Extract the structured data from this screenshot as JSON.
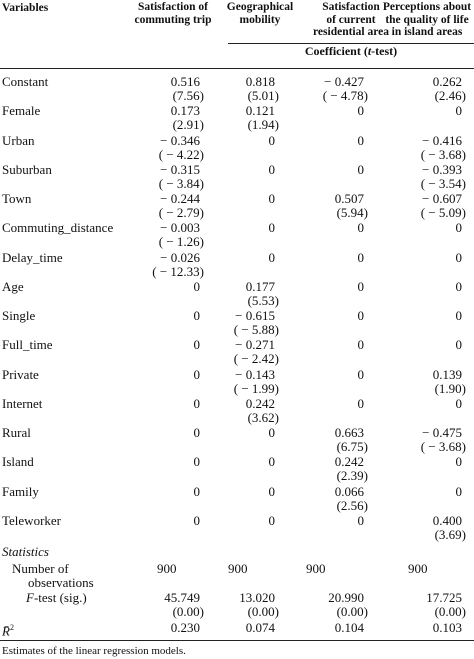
{
  "headers": {
    "variables": "Variables",
    "columns": [
      [
        "Satisfaction of",
        "commuting trip"
      ],
      [
        "Geographical",
        "mobility"
      ],
      [
        "Satisfaction",
        "of current",
        "residential area"
      ],
      [
        "Perceptions about",
        "the quality of life",
        "in island areas"
      ]
    ]
  },
  "coef_title_pre": "Coefficient (",
  "coef_title_t": "t",
  "coef_title_post": "-test)",
  "rows": [
    {
      "label": "Constant",
      "cells": [
        [
          "0.516",
          "(7.56)"
        ],
        [
          "0.818",
          "(5.01)"
        ],
        [
          "− 0.427",
          "( − 4.78)"
        ],
        [
          "0.262",
          "(2.46)"
        ]
      ]
    },
    {
      "label": "Female",
      "cells": [
        [
          "0.173",
          "(2.91)"
        ],
        [
          "0.121",
          "(1.94)"
        ],
        [
          "0",
          ""
        ],
        [
          "0",
          ""
        ]
      ]
    },
    {
      "label": "Urban",
      "cells": [
        [
          "− 0.346",
          "( − 4.22)"
        ],
        [
          "0",
          ""
        ],
        [
          "0",
          ""
        ],
        [
          "− 0.416",
          "( − 3.68)"
        ]
      ]
    },
    {
      "label": "Suburban",
      "cells": [
        [
          "− 0.315",
          "( − 3.84)"
        ],
        [
          "0",
          ""
        ],
        [
          "0",
          ""
        ],
        [
          "− 0.393",
          "( − 3.54)"
        ]
      ]
    },
    {
      "label": "Town",
      "cells": [
        [
          "− 0.244",
          "( − 2.79)"
        ],
        [
          "0",
          ""
        ],
        [
          "0.507",
          "(5.94)"
        ],
        [
          "− 0.607",
          "( − 5.09)"
        ]
      ]
    },
    {
      "label": "Commuting_distance",
      "cells": [
        [
          "− 0.003",
          "( − 1.26)"
        ],
        [
          "0",
          ""
        ],
        [
          "0",
          ""
        ],
        [
          "0",
          ""
        ]
      ]
    },
    {
      "label": "Delay_time",
      "cells": [
        [
          "− 0.026",
          "( − 12.33)"
        ],
        [
          "0",
          ""
        ],
        [
          "0",
          ""
        ],
        [
          "0",
          ""
        ]
      ]
    },
    {
      "label": "Age",
      "cells": [
        [
          "0",
          ""
        ],
        [
          "0.177",
          "(5.53)"
        ],
        [
          "0",
          ""
        ],
        [
          "0",
          ""
        ]
      ]
    },
    {
      "label": "Single",
      "cells": [
        [
          "0",
          ""
        ],
        [
          "− 0.615",
          "( − 5.88)"
        ],
        [
          "0",
          ""
        ],
        [
          "0",
          ""
        ]
      ]
    },
    {
      "label": "Full_time",
      "cells": [
        [
          "0",
          ""
        ],
        [
          "− 0.271",
          "( − 2.42)"
        ],
        [
          "0",
          ""
        ],
        [
          "0",
          ""
        ]
      ]
    },
    {
      "label": "Private",
      "cells": [
        [
          "0",
          ""
        ],
        [
          "− 0.143",
          "( − 1.99)"
        ],
        [
          "0",
          ""
        ],
        [
          "0.139",
          "(1.90)"
        ]
      ]
    },
    {
      "label": "Internet",
      "cells": [
        [
          "0",
          ""
        ],
        [
          "0.242",
          "(3.62)"
        ],
        [
          "0",
          ""
        ],
        [
          "0",
          ""
        ]
      ]
    },
    {
      "label": "Rural",
      "cells": [
        [
          "0",
          ""
        ],
        [
          "0",
          ""
        ],
        [
          "0.663",
          "(6.75)"
        ],
        [
          "− 0.475",
          "( − 3.68)"
        ]
      ]
    },
    {
      "label": "Island",
      "cells": [
        [
          "0",
          ""
        ],
        [
          "0",
          ""
        ],
        [
          "0.242",
          "(2.39)"
        ],
        [
          "0",
          ""
        ]
      ]
    },
    {
      "label": "Family",
      "cells": [
        [
          "0",
          ""
        ],
        [
          "0",
          ""
        ],
        [
          "0.066",
          "(2.56)"
        ],
        [
          "0",
          ""
        ]
      ]
    },
    {
      "label": "Teleworker",
      "cells": [
        [
          "0",
          ""
        ],
        [
          "0",
          ""
        ],
        [
          "0",
          ""
        ],
        [
          "0.400",
          "(3.69)"
        ]
      ]
    }
  ],
  "statistics_label": "Statistics",
  "stats": [
    {
      "label_lines": [
        "Number of",
        "observations"
      ],
      "cells": [
        [
          "900",
          ""
        ],
        [
          "900",
          ""
        ],
        [
          "900",
          ""
        ],
        [
          "900",
          ""
        ]
      ]
    },
    {
      "label_italic": "F",
      "label_rest": "-test (sig.)",
      "cells": [
        [
          "45.749",
          "(0.00)"
        ],
        [
          "13.020",
          "(0.00)"
        ],
        [
          "20.990",
          "(0.00)"
        ],
        [
          "17.725",
          "(0.00)"
        ]
      ]
    },
    {
      "label_italic": "R̄",
      "label_sup": "2",
      "cells": [
        [
          "0.230",
          ""
        ],
        [
          "0.074",
          ""
        ],
        [
          "0.104",
          ""
        ],
        [
          "0.103",
          ""
        ]
      ]
    }
  ],
  "footnote": "Estimates of the linear regression models."
}
